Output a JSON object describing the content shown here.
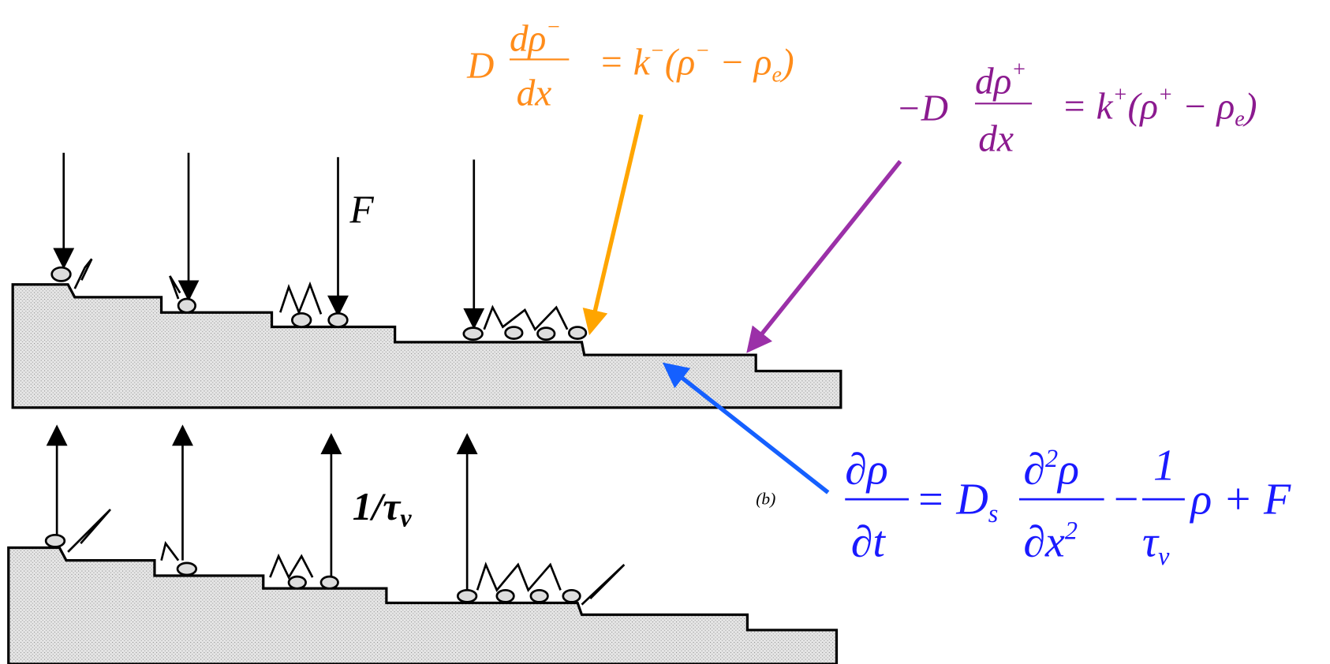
{
  "labels": {
    "flux": "F",
    "inv_tau": "1/τ",
    "inv_tau_sub": "v",
    "panel": "(b)"
  },
  "lower_step_condition": {
    "coef": "D",
    "num": "dρ",
    "num_sup": "−",
    "den": "dx",
    "eq": "= k",
    "k_sup": "−",
    "open": "(ρ",
    "rho_sup": "−",
    "minus": " − ρ",
    "sub": "e",
    "close": ")"
  },
  "upper_step_condition": {
    "coef": "−D",
    "num": "dρ",
    "num_sup": "+",
    "den": "dx",
    "eq": "= k",
    "k_sup": "+",
    "open": "(ρ",
    "rho_sup": "+",
    "minus": " − ρ",
    "sub": "e",
    "close": ")"
  },
  "diffusion_equation": {
    "lhs_num": "∂ρ",
    "lhs_den": "∂t",
    "eq": "= D",
    "d_sub": "s",
    "d2_num_a": "∂",
    "d2_num_sup": "2",
    "d2_num_b": "ρ",
    "d2_den_a": "∂x",
    "d2_den_sup": "2",
    "minus": "−",
    "one": "1",
    "tau": "τ",
    "tau_sub": "v",
    "rest": "ρ + F"
  }
}
